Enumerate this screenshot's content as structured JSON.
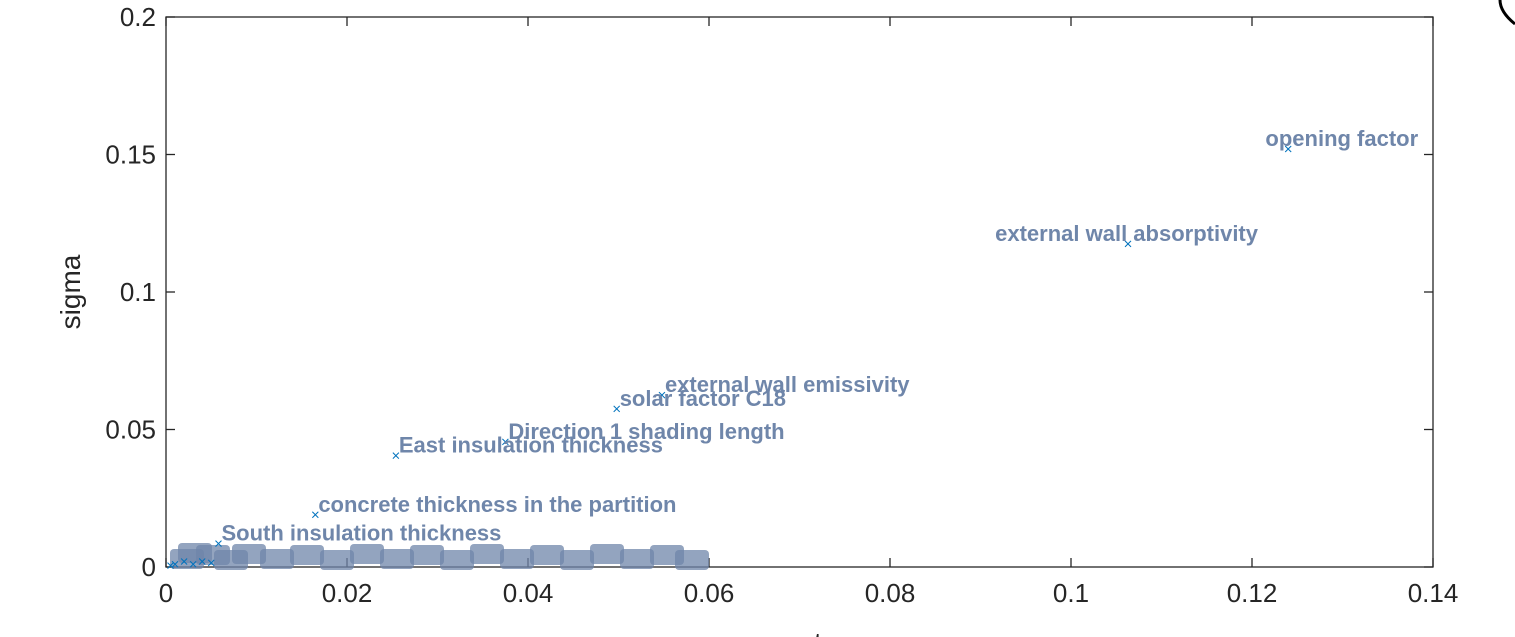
{
  "chart_data": {
    "type": "scatter",
    "title": "",
    "xlabel": "mu star",
    "ylabel": "sigma",
    "xlim": [
      0,
      0.14
    ],
    "ylim": [
      0,
      0.2
    ],
    "xticks": [
      "0",
      "0.02",
      "0.04",
      "0.06",
      "0.08",
      "0.1",
      "0.12",
      "0.14"
    ],
    "yticks": [
      "0",
      "0.05",
      "0.1",
      "0.15",
      "0.2"
    ],
    "xtick_values": [
      0,
      0.02,
      0.04,
      0.06,
      0.08,
      0.1,
      0.12,
      0.14
    ],
    "ytick_values": [
      0,
      0.05,
      0.1,
      0.15,
      0.2
    ],
    "grid": false,
    "marker": "x",
    "marker_color": "#0072bd",
    "label_color": "#6f86aa",
    "points": [
      {
        "x": 0.124,
        "y": 0.152,
        "label": "opening factor"
      },
      {
        "x": 0.1063,
        "y": 0.1175,
        "label": "external wall absorptivity"
      },
      {
        "x": 0.0548,
        "y": 0.0625,
        "label": "external wall emissivity"
      },
      {
        "x": 0.0498,
        "y": 0.0575,
        "label": "solar factor C18"
      },
      {
        "x": 0.0375,
        "y": 0.0455,
        "label": "Direction 1 shading length"
      },
      {
        "x": 0.0254,
        "y": 0.0405,
        "label": "East insulation thickness"
      },
      {
        "x": 0.0165,
        "y": 0.019,
        "label": "concrete thickness in the partition"
      },
      {
        "x": 0.0058,
        "y": 0.0085,
        "label": "South insulation thickness"
      },
      {
        "x": 0.0005,
        "y": 0.0005,
        "label": ""
      },
      {
        "x": 0.001,
        "y": 0.001,
        "label": ""
      },
      {
        "x": 0.002,
        "y": 0.002,
        "label": ""
      },
      {
        "x": 0.003,
        "y": 0.001,
        "label": ""
      },
      {
        "x": 0.004,
        "y": 0.002,
        "label": ""
      },
      {
        "x": 0.005,
        "y": 0.0015,
        "label": ""
      }
    ]
  }
}
